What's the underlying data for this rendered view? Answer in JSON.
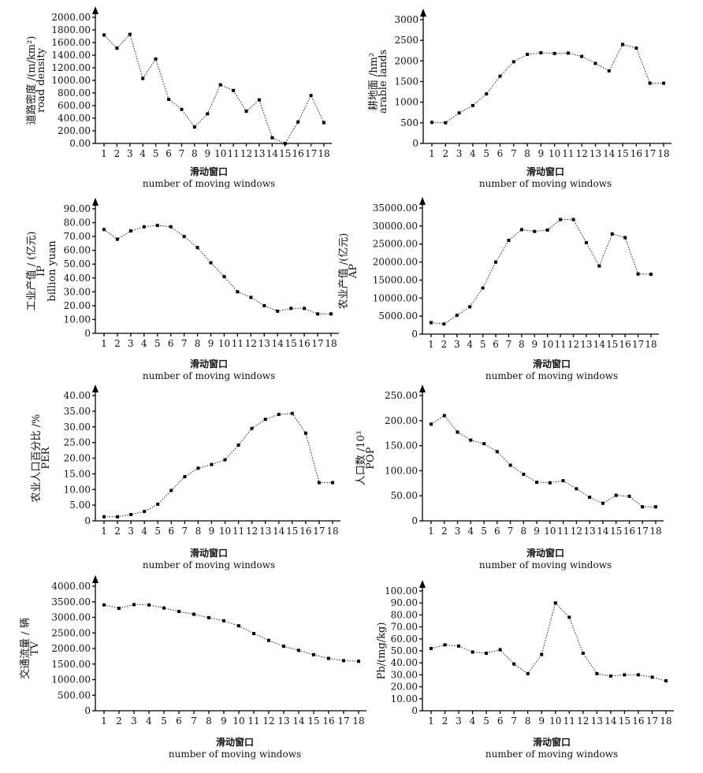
{
  "chart_data": [
    {
      "type": "line",
      "ylabel_cn": "道路密度 /(m/km²)",
      "ylabel_en": "road density",
      "xlabel_cn": "滑动窗口",
      "xlabel_en": "number of moving windows",
      "x": [
        1,
        2,
        3,
        4,
        5,
        6,
        7,
        8,
        9,
        10,
        11,
        12,
        13,
        14,
        15,
        16,
        17,
        18
      ],
      "values": [
        1720,
        1510,
        1730,
        1030,
        1340,
        700,
        540,
        260,
        470,
        930,
        840,
        510,
        690,
        90,
        0,
        340,
        760,
        330
      ],
      "ylim": [
        0,
        2000
      ],
      "yticks": [
        0,
        200,
        400,
        600,
        800,
        1000,
        1200,
        1400,
        1600,
        1800,
        2000
      ],
      "ytick_labels": [
        "0.00",
        "200.00",
        "400.00",
        "600.00",
        "800.00",
        "1000.00",
        "1200.00",
        "1400.00",
        "1600.00",
        "1800.00",
        "2000.00"
      ]
    },
    {
      "type": "line",
      "ylabel_cn": "耕地面 /hm²",
      "ylabel_en": "arable lands",
      "xlabel_cn": "滑动窗口",
      "xlabel_en": "number of moving windows",
      "x": [
        1,
        2,
        3,
        4,
        5,
        6,
        7,
        8,
        9,
        10,
        11,
        12,
        13,
        14,
        15,
        16,
        17,
        18
      ],
      "values": [
        510,
        500,
        740,
        920,
        1200,
        1630,
        1980,
        2160,
        2200,
        2180,
        2190,
        2110,
        1940,
        1760,
        2400,
        2310,
        1460,
        1460
      ],
      "ylim": [
        0,
        3000
      ],
      "yticks": [
        0,
        500,
        1000,
        1500,
        2000,
        2500,
        3000
      ],
      "ytick_labels": [
        "0",
        "500",
        "1000",
        "1500",
        "2000",
        "2500",
        "3000"
      ]
    },
    {
      "type": "line",
      "ylabel_cn": "工业产值 / (亿元)",
      "ylabel_en": "IP",
      "ylabel_en2": "billion yuan",
      "xlabel_cn": "滑动窗口",
      "xlabel_en": "number of moving windows",
      "x": [
        1,
        2,
        3,
        4,
        5,
        6,
        7,
        8,
        9,
        10,
        11,
        12,
        13,
        14,
        15,
        16,
        17,
        18
      ],
      "values": [
        75,
        68,
        74,
        77,
        78,
        77,
        70,
        62,
        51,
        41,
        30,
        26,
        20,
        16,
        18,
        18,
        14,
        14
      ],
      "ylim": [
        0,
        90
      ],
      "yticks": [
        0,
        10,
        20,
        30,
        40,
        50,
        60,
        70,
        80,
        90
      ],
      "ytick_labels": [
        "0",
        "10.00",
        "20.00",
        "30.00",
        "40.00",
        "50.00",
        "60.00",
        "70.00",
        "80.00",
        "90.00"
      ]
    },
    {
      "type": "line",
      "ylabel_cn": "农业产值 /(亿元)",
      "ylabel_en": "AP",
      "xlabel_cn": "滑动窗口",
      "xlabel_en": "number of moving windows",
      "x": [
        1,
        2,
        3,
        4,
        5,
        6,
        7,
        8,
        9,
        10,
        11,
        12,
        13,
        14,
        15,
        16,
        17,
        18
      ],
      "values": [
        3200,
        2800,
        5200,
        7600,
        12800,
        20000,
        26000,
        29000,
        28500,
        28900,
        31800,
        31800,
        25400,
        18900,
        27800,
        26800,
        16700,
        16600
      ],
      "ylim": [
        0,
        35000
      ],
      "yticks": [
        0,
        5000,
        10000,
        15000,
        20000,
        25000,
        30000,
        35000
      ],
      "ytick_labels": [
        "0",
        "5000.00",
        "10000.00",
        "15000.00",
        "20000.00",
        "25000.00",
        "30000.00",
        "35000.00"
      ]
    },
    {
      "type": "line",
      "ylabel_cn": "农业人口百分比 /%",
      "ylabel_en": "PER",
      "xlabel_cn": "滑动窗口",
      "xlabel_en": "number of moving windows",
      "x": [
        1,
        2,
        3,
        4,
        5,
        6,
        7,
        8,
        9,
        10,
        11,
        12,
        13,
        14,
        15,
        16,
        17,
        18
      ],
      "values": [
        1.3,
        1.3,
        2.0,
        3.0,
        5.3,
        9.7,
        14.1,
        16.8,
        18.0,
        19.5,
        24.2,
        29.5,
        32.4,
        34.0,
        34.3,
        28.0,
        12.2,
        12.2
      ],
      "ylim": [
        0,
        40
      ],
      "yticks": [
        0,
        5,
        10,
        15,
        20,
        25,
        30,
        35,
        40
      ],
      "ytick_labels": [
        "0",
        "5.00",
        "10.00",
        "15.00",
        "20.00",
        "25.00",
        "30.00",
        "35.00",
        "40.00"
      ]
    },
    {
      "type": "line",
      "ylabel_cn": "人口数 /10³",
      "ylabel_en": "POP",
      "xlabel_cn": "滑动窗口",
      "xlabel_en": "number of moving windows",
      "x": [
        1,
        2,
        3,
        4,
        5,
        6,
        7,
        8,
        9,
        10,
        11,
        12,
        13,
        14,
        15,
        16,
        17,
        18
      ],
      "values": [
        193,
        210,
        177,
        161,
        154,
        138,
        111,
        93,
        77,
        76,
        80,
        64,
        47,
        35,
        51,
        49,
        28,
        28
      ],
      "ylim": [
        0,
        250
      ],
      "yticks": [
        0,
        50,
        100,
        150,
        200,
        250
      ],
      "ytick_labels": [
        "0",
        "50.00",
        "100.00",
        "150.00",
        "200.00",
        "250.00"
      ]
    },
    {
      "type": "line",
      "ylabel_cn": "交通流量 / 辆",
      "ylabel_en": "TV",
      "xlabel_cn": "滑动窗口",
      "xlabel_en": "number of moving windows",
      "x": [
        1,
        2,
        3,
        4,
        5,
        6,
        7,
        8,
        9,
        10,
        11,
        12,
        13,
        14,
        15,
        16,
        17,
        18
      ],
      "values": [
        3400,
        3290,
        3410,
        3400,
        3300,
        3190,
        3100,
        2990,
        2890,
        2730,
        2480,
        2260,
        2070,
        1940,
        1800,
        1680,
        1610,
        1590
      ],
      "ylim": [
        0,
        4000
      ],
      "yticks": [
        0,
        500,
        1000,
        1500,
        2000,
        2500,
        3000,
        3500,
        4000
      ],
      "ytick_labels": [
        "0",
        "500.00",
        "1000.00",
        "1500.00",
        "2000.00",
        "2500.00",
        "3000.00",
        "3500.00",
        "4000.00"
      ]
    },
    {
      "type": "line",
      "ylabel_cn": "Pb/(mg/kg)",
      "ylabel_en": "",
      "xlabel_cn": "滑动窗口",
      "xlabel_en": "number of moving windows",
      "x": [
        1,
        2,
        3,
        4,
        5,
        6,
        7,
        8,
        9,
        10,
        11,
        12,
        13,
        14,
        15,
        16,
        17,
        18
      ],
      "values": [
        52,
        55,
        54,
        49,
        48,
        51,
        39,
        31,
        47,
        90,
        78,
        48,
        31,
        29,
        30,
        30,
        28,
        25
      ],
      "ylim": [
        0,
        100
      ],
      "yticks": [
        0,
        10,
        20,
        30,
        40,
        50,
        60,
        70,
        80,
        90,
        100
      ],
      "ytick_labels": [
        "0",
        "10.00",
        "20.00",
        "30.00",
        "40.00",
        "50.00",
        "60.00",
        "70.00",
        "80.00",
        "90.00",
        "100.00"
      ]
    }
  ]
}
